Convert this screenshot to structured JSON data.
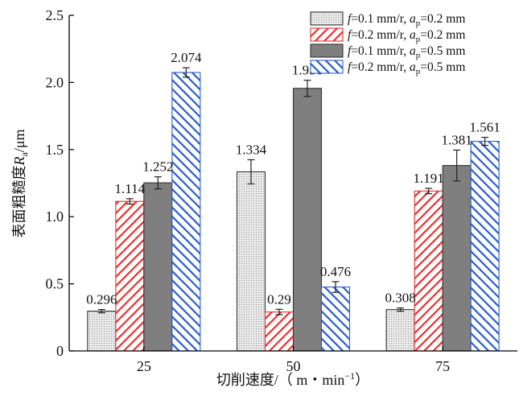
{
  "chart_data": {
    "type": "bar",
    "xlabel_main": "切削速度/",
    "xlabel_unit": "（ m・min",
    "xlabel_sup": "−1",
    "xlabel_close": "）",
    "ylabel_main": "表面粗糙度",
    "ylabel_sym": "R",
    "ylabel_sub": "a",
    "ylabel_unit": "/μm",
    "categories": [
      "25",
      "50",
      "75"
    ],
    "ylim": [
      0,
      2.5
    ],
    "yticks": [
      "0",
      "0.5",
      "1.0",
      "1.5",
      "2.0",
      "2.5"
    ],
    "legend_position": "top-right",
    "series": [
      {
        "f_sym": "f",
        "f_val": "=0.1 mm/r, ",
        "ap_sym": "a",
        "ap_sub": "p",
        "ap_val": "=0.2 mm",
        "color": "#d9d9d9",
        "pattern": "dots",
        "values": [
          0.296,
          1.334,
          0.308
        ],
        "labels": [
          "0.296",
          "1.334",
          "0.308"
        ],
        "errors": [
          0.012,
          0.09,
          0.012
        ]
      },
      {
        "f_sym": "f",
        "f_val": "=0.2 mm/r, ",
        "ap_sym": "a",
        "ap_sub": "p",
        "ap_val": "=0.2 mm",
        "color": "#e8302f",
        "pattern": "hatch",
        "values": [
          1.114,
          0.29,
          1.191
        ],
        "labels": [
          "1.114",
          "0.29",
          "1.191"
        ],
        "errors": [
          0.02,
          0.02,
          0.02
        ]
      },
      {
        "f_sym": "f",
        "f_val": "=0.1 mm/r, ",
        "ap_sym": "a",
        "ap_sub": "p",
        "ap_val": "=0.5 mm",
        "color": "#7f7f7f",
        "pattern": "solid",
        "values": [
          1.252,
          1.956,
          1.381
        ],
        "labels": [
          "1.252",
          "1.956",
          "1.381"
        ],
        "errors": [
          0.045,
          0.06,
          0.115
        ]
      },
      {
        "f_sym": "f",
        "f_val": "=0.2 mm/r, ",
        "ap_sym": "a",
        "ap_sub": "p",
        "ap_val": "=0.5 mm",
        "color": "#2a5cc9",
        "pattern": "hatch",
        "values": [
          2.074,
          0.476,
          1.561
        ],
        "labels": [
          "2.074",
          "0.476",
          "1.561"
        ],
        "errors": [
          0.035,
          0.04,
          0.03
        ]
      }
    ]
  }
}
